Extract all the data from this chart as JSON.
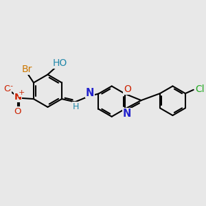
{
  "background_color": "#e8e8e8",
  "bond_color": "#000000",
  "bond_lw": 1.5,
  "atom_colors": {
    "Br": "#cc7700",
    "HO": "#2288aa",
    "N": "#2222cc",
    "O": "#cc2200",
    "Cl": "#22aa22",
    "H": "#2288aa"
  },
  "figsize": [
    3.0,
    3.0
  ],
  "dpi": 100
}
